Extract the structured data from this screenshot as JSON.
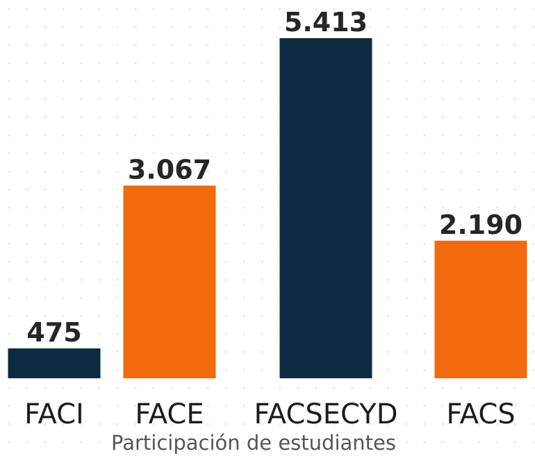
{
  "chart_data": {
    "type": "bar",
    "x_label": "Participación de estudiantes",
    "categories": [
      "FACI",
      "FACE",
      "FACSECYD",
      "FACS"
    ],
    "values": [
      475,
      3067,
      5413,
      2190
    ],
    "value_labels": [
      "475",
      "3.067",
      "5.413",
      "2.190"
    ],
    "colors": [
      "#0c2b40",
      "#f26a0e",
      "#0c2b40",
      "#f26a0e"
    ]
  }
}
